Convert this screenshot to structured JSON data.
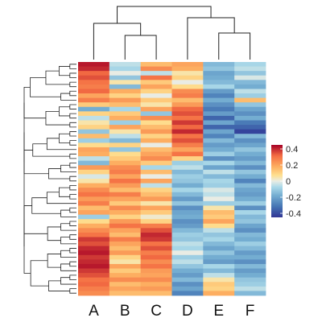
{
  "chart_data": {
    "type": "heatmap",
    "title": "",
    "xlabel": "",
    "ylabel": "",
    "columns": [
      "A",
      "B",
      "C",
      "D",
      "E",
      "F"
    ],
    "column_dendrogram": "((A,(B,C)),(D,(E,F)))",
    "row_dendrogram": true,
    "value_range": [
      -0.45,
      0.45
    ],
    "colorbar": {
      "ticks": [
        "0.4",
        "0.2",
        "0",
        "-0.2",
        "-0.4"
      ],
      "tick_values": [
        0.4,
        0.2,
        0,
        -0.2,
        -0.4
      ],
      "placement": "right"
    },
    "rows": [
      [
        0.42,
        -0.05,
        0.15,
        0.2,
        -0.15,
        -0.08
      ],
      [
        0.4,
        -0.08,
        0.25,
        0.18,
        -0.12,
        -0.05
      ],
      [
        0.32,
        0.0,
        -0.05,
        0.05,
        -0.2,
        -0.12
      ],
      [
        0.35,
        -0.12,
        0.3,
        0.1,
        -0.18,
        -0.02
      ],
      [
        0.3,
        0.05,
        0.12,
        0.0,
        -0.15,
        -0.15
      ],
      [
        0.28,
        -0.15,
        0.2,
        0.08,
        -0.08,
        -0.18
      ],
      [
        0.32,
        0.18,
        0.1,
        0.25,
        -0.22,
        -0.05
      ],
      [
        0.2,
        0.1,
        0.0,
        0.28,
        -0.28,
        -0.1
      ],
      [
        0.28,
        0.22,
        0.12,
        0.15,
        -0.18,
        0.15
      ],
      [
        0.12,
        0.15,
        0.05,
        0.22,
        -0.25,
        -0.12
      ],
      [
        -0.18,
        -0.08,
        0.2,
        0.32,
        -0.3,
        -0.2
      ],
      [
        0.1,
        0.12,
        -0.12,
        0.35,
        -0.22,
        -0.25
      ],
      [
        -0.05,
        0.18,
        0.25,
        0.3,
        -0.35,
        -0.18
      ],
      [
        0.05,
        -0.1,
        0.08,
        0.38,
        -0.2,
        -0.3
      ],
      [
        0.1,
        0.2,
        0.15,
        0.32,
        -0.35,
        -0.35
      ],
      [
        -0.12,
        0.05,
        0.22,
        0.4,
        -0.2,
        -0.42
      ],
      [
        0.15,
        -0.05,
        0.1,
        0.3,
        -0.28,
        -0.15
      ],
      [
        -0.1,
        -0.15,
        0.18,
        0.35,
        -0.15,
        -0.25
      ],
      [
        0.08,
        0.1,
        0.0,
        0.28,
        -0.22,
        -0.2
      ],
      [
        0.2,
        -0.12,
        0.15,
        0.2,
        -0.18,
        -0.12
      ],
      [
        0.18,
        0.08,
        0.2,
        0.3,
        -0.1,
        -0.18
      ],
      [
        -0.05,
        0.12,
        0.25,
        0.1,
        -0.25,
        -0.22
      ],
      [
        -0.15,
        0.18,
        0.12,
        -0.1,
        -0.08,
        -0.15
      ],
      [
        0.22,
        0.25,
        -0.08,
        -0.05,
        -0.2,
        -0.25
      ],
      [
        0.1,
        0.28,
        0.15,
        -0.15,
        -0.05,
        -0.12
      ],
      [
        -0.02,
        0.2,
        0.0,
        -0.1,
        -0.15,
        -0.18
      ],
      [
        0.05,
        0.3,
        0.2,
        -0.12,
        -0.08,
        -0.28
      ],
      [
        0.18,
        0.22,
        -0.05,
        -0.18,
        -0.1,
        -0.15
      ],
      [
        0.25,
        0.15,
        0.1,
        -0.08,
        -0.02,
        -0.2
      ],
      [
        0.3,
        0.28,
        0.15,
        -0.15,
        -0.05,
        -0.22
      ],
      [
        0.22,
        0.2,
        0.22,
        -0.22,
        0.0,
        -0.18
      ],
      [
        0.28,
        0.12,
        0.05,
        -0.12,
        -0.1,
        -0.1
      ],
      [
        0.15,
        0.25,
        0.2,
        -0.25,
        0.05,
        -0.25
      ],
      [
        0.2,
        0.18,
        0.12,
        -0.2,
        0.15,
        -0.08
      ],
      [
        -0.1,
        0.1,
        0.02,
        -0.18,
        0.12,
        -0.15
      ],
      [
        0.08,
        0.22,
        0.1,
        -0.25,
        0.2,
        -0.12
      ],
      [
        0.18,
        0.3,
        0.28,
        -0.22,
        0.08,
        -0.2
      ],
      [
        0.25,
        0.2,
        0.35,
        -0.15,
        -0.05,
        -0.25
      ],
      [
        0.3,
        0.15,
        0.4,
        -0.1,
        -0.12,
        -0.15
      ],
      [
        0.38,
        0.28,
        0.38,
        -0.12,
        -0.08,
        -0.18
      ],
      [
        0.35,
        0.2,
        0.3,
        -0.05,
        -0.15,
        -0.1
      ],
      [
        0.4,
        0.15,
        0.35,
        -0.08,
        -0.2,
        -0.15
      ],
      [
        0.42,
        0.22,
        0.28,
        0.0,
        -0.12,
        -0.22
      ],
      [
        0.38,
        0.1,
        0.32,
        -0.1,
        -0.18,
        -0.18
      ],
      [
        0.4,
        0.05,
        0.25,
        -0.05,
        -0.22,
        -0.25
      ],
      [
        0.42,
        0.2,
        0.3,
        -0.12,
        -0.08,
        -0.15
      ],
      [
        0.38,
        0.12,
        0.22,
        -0.18,
        -0.15,
        -0.22
      ],
      [
        0.35,
        0.18,
        0.2,
        -0.22,
        -0.05,
        -0.18
      ],
      [
        0.3,
        0.25,
        0.25,
        -0.15,
        0.05,
        -0.12
      ],
      [
        0.32,
        0.15,
        0.18,
        -0.25,
        0.12,
        -0.1
      ],
      [
        0.28,
        0.2,
        0.22,
        -0.2,
        0.1,
        -0.05
      ],
      [
        0.25,
        0.15,
        0.15,
        -0.28,
        0.18,
        -0.15
      ]
    ]
  }
}
